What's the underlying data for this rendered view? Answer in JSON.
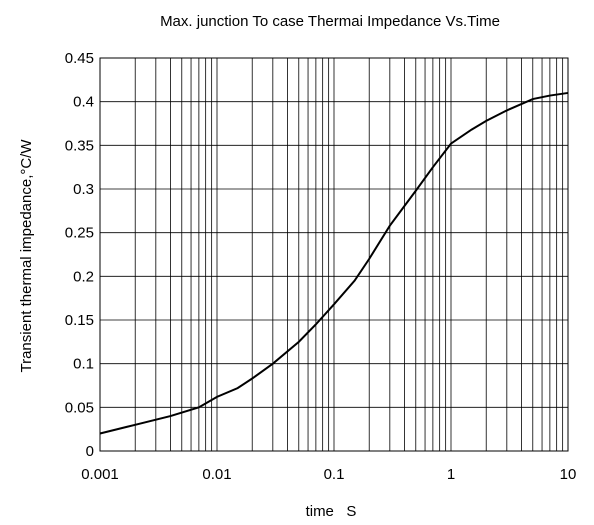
{
  "chart_data": {
    "type": "line",
    "title": "Max. junction To case Thermai Impedance Vs.Time",
    "xlabel": "time   S",
    "ylabel": "Transient thermal impedance,°C/W",
    "x_scale": "log",
    "xlim": [
      0.001,
      10
    ],
    "ylim": [
      0,
      0.45
    ],
    "grid": true,
    "x_ticks": [
      "0.001",
      "0.01",
      "0.1",
      "1",
      "10"
    ],
    "y_ticks": [
      "0",
      "0.05",
      "0.1",
      "0.15",
      "0.2",
      "0.25",
      "0.3",
      "0.35",
      "0.4",
      "0.45"
    ],
    "series": [
      {
        "x": [
          0.001,
          0.002,
          0.004,
          0.007,
          0.01,
          0.015,
          0.02,
          0.03,
          0.05,
          0.07,
          0.1,
          0.15,
          0.2,
          0.3,
          0.5,
          0.7,
          1,
          1.5,
          2,
          3,
          5,
          7,
          10
        ],
        "y": [
          0.02,
          0.03,
          0.04,
          0.05,
          0.062,
          0.072,
          0.083,
          0.1,
          0.125,
          0.145,
          0.168,
          0.195,
          0.22,
          0.258,
          0.298,
          0.325,
          0.352,
          0.368,
          0.378,
          0.39,
          0.403,
          0.407,
          0.41
        ]
      }
    ]
  }
}
